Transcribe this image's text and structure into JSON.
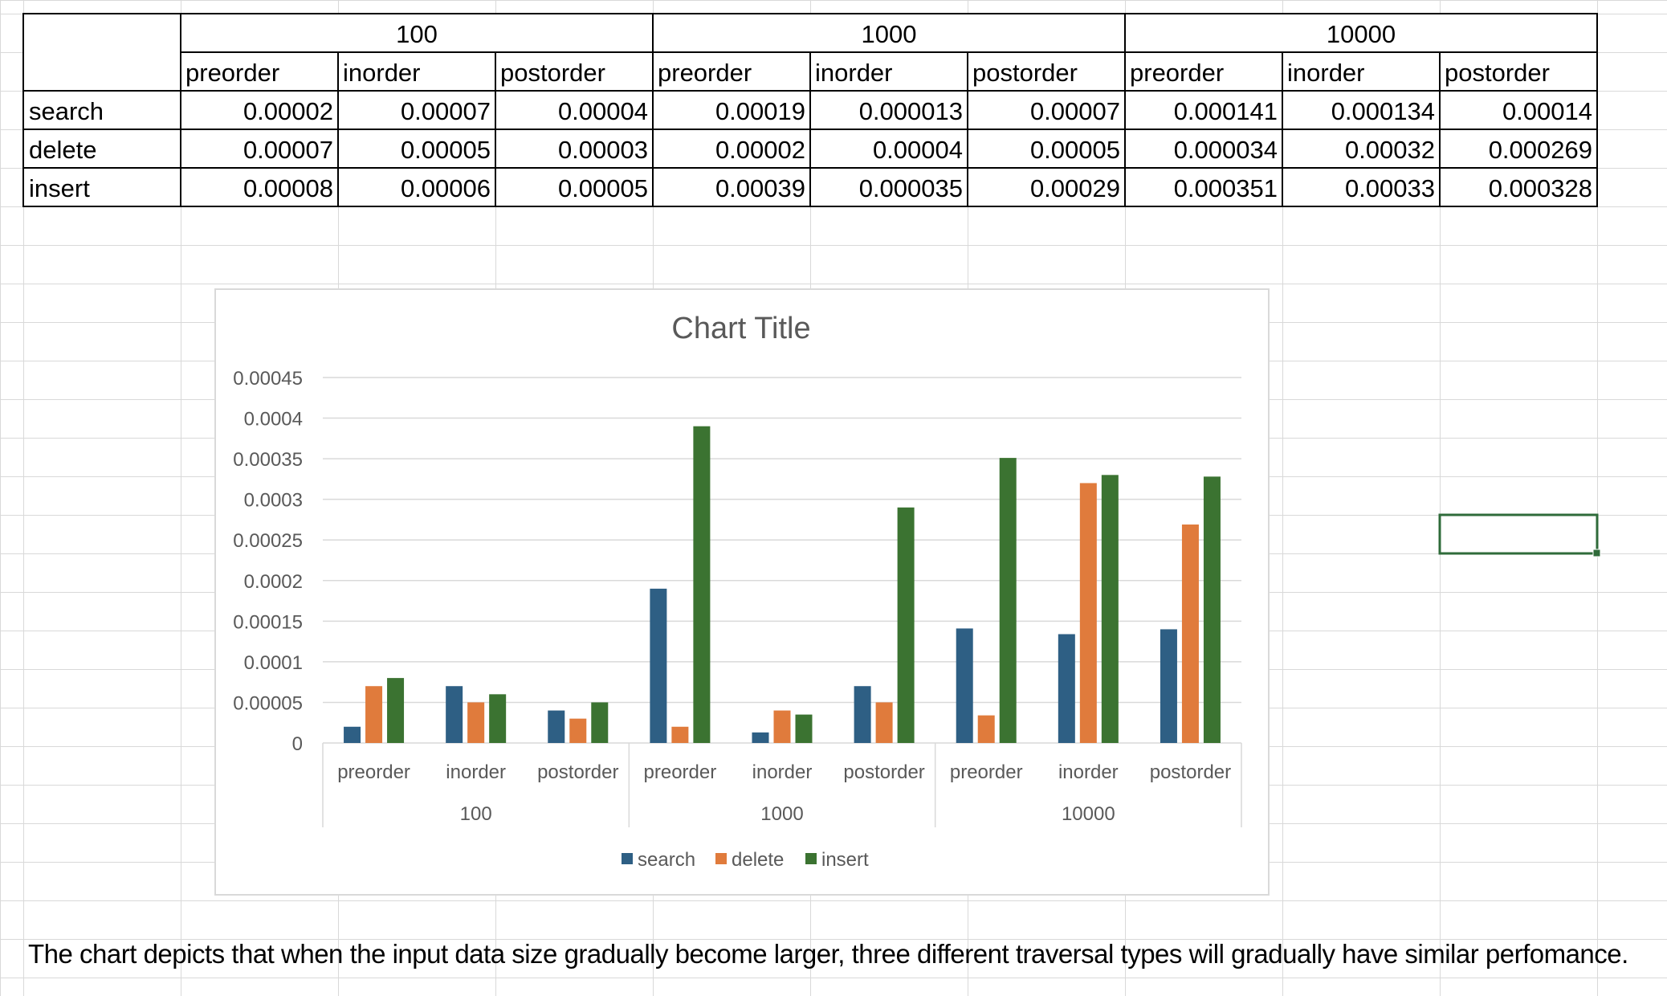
{
  "table": {
    "groups": [
      "100",
      "1000",
      "10000"
    ],
    "traversals": [
      "preorder",
      "inorder",
      "postorder"
    ],
    "rows": [
      {
        "label": "search",
        "values": [
          "0.00002",
          "0.00007",
          "0.00004",
          "0.00019",
          "0.000013",
          "0.00007",
          "0.000141",
          "0.000134",
          "0.00014"
        ]
      },
      {
        "label": "delete",
        "values": [
          "0.00007",
          "0.00005",
          "0.00003",
          "0.00002",
          "0.00004",
          "0.00005",
          "0.000034",
          "0.00032",
          "0.000269"
        ]
      },
      {
        "label": "insert",
        "values": [
          "0.00008",
          "0.00006",
          "0.00005",
          "0.00039",
          "0.000035",
          "0.00029",
          "0.000351",
          "0.00033",
          "0.000328"
        ]
      }
    ]
  },
  "chart_data": {
    "type": "bar",
    "title": "Chart Title",
    "groups": [
      "100",
      "1000",
      "10000"
    ],
    "categories": [
      "preorder",
      "inorder",
      "postorder",
      "preorder",
      "inorder",
      "postorder",
      "preorder",
      "inorder",
      "postorder"
    ],
    "series": [
      {
        "name": "search",
        "color": "#2e5f84",
        "values": [
          2e-05,
          7e-05,
          4e-05,
          0.00019,
          1.3e-05,
          7e-05,
          0.000141,
          0.000134,
          0.00014
        ]
      },
      {
        "name": "delete",
        "color": "#e07b3c",
        "values": [
          7e-05,
          5e-05,
          3e-05,
          2e-05,
          4e-05,
          5e-05,
          3.4e-05,
          0.00032,
          0.000269
        ]
      },
      {
        "name": "insert",
        "color": "#3b7331",
        "values": [
          8e-05,
          6e-05,
          5e-05,
          0.00039,
          3.5e-05,
          0.00029,
          0.000351,
          0.00033,
          0.000328
        ]
      }
    ],
    "yticks": [
      "0",
      "0.00005",
      "0.0001",
      "0.00015",
      "0.0002",
      "0.00025",
      "0.0003",
      "0.00035",
      "0.0004",
      "0.00045"
    ],
    "ylim": [
      0,
      0.00045
    ],
    "grid": true,
    "legend": "bottom"
  },
  "note": "The chart depicts that when the input data size gradually become larger, three different traversal types will gradually have similar perfomance.",
  "colors": {
    "gridline": "#d9d9d9",
    "selection": "#2f6b3a"
  }
}
